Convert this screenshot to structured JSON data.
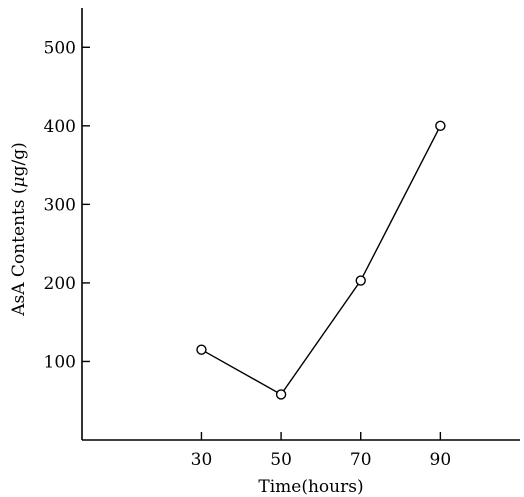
{
  "chart_data": {
    "type": "line",
    "title": "",
    "xlabel": "Time(hours)",
    "ylabel_main": "AsA Contents (",
    "ylabel_unit_mu": "μ",
    "ylabel_unit_rest": "g/g)",
    "x": [
      30,
      50,
      70,
      90
    ],
    "series": [
      {
        "values": [
          115,
          58,
          203,
          400
        ]
      }
    ],
    "xlim": [
      0,
      110
    ],
    "ylim": [
      0,
      550
    ],
    "xticks": [
      30,
      50,
      70,
      90
    ],
    "yticks": [
      100,
      200,
      300,
      400,
      500
    ],
    "grid": false,
    "marker": "open-circle",
    "colors": {
      "line": "#000000",
      "marker_fill": "#ffffff"
    }
  }
}
